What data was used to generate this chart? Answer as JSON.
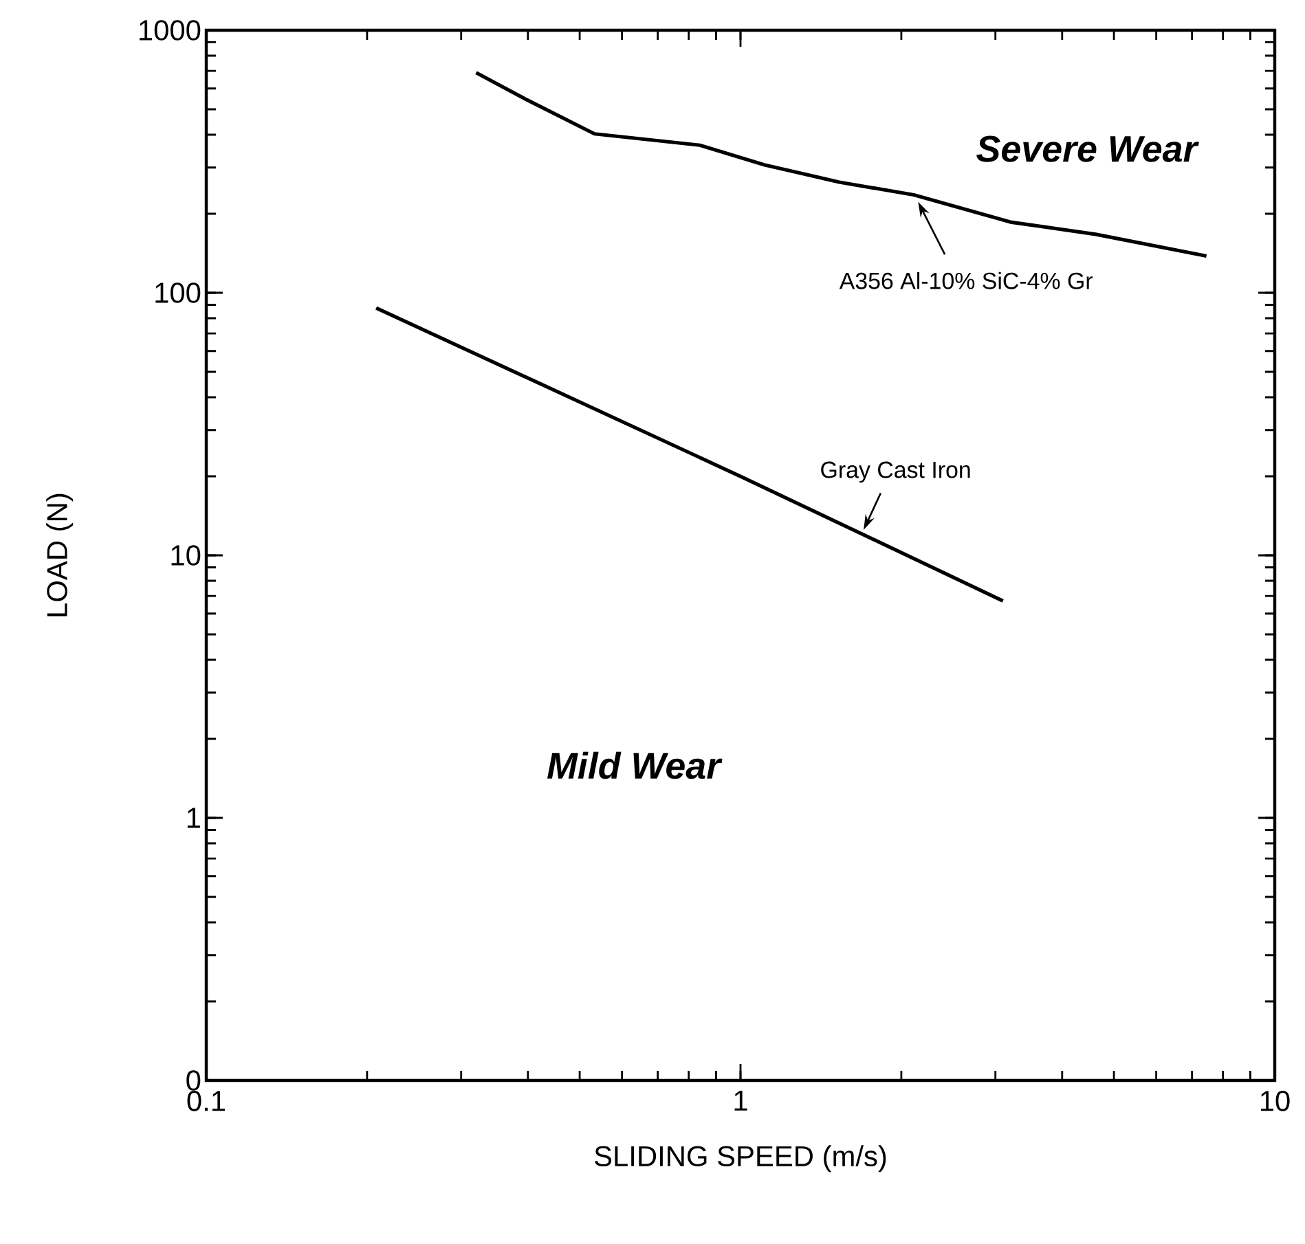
{
  "chart_data": {
    "type": "line",
    "xlabel": "SLIDING SPEED (m/s)",
    "ylabel": "LOAD (N)",
    "log": "xy",
    "xlim": [
      0.1,
      10
    ],
    "ylim": [
      0.1,
      1000
    ],
    "xticks": [
      0.1,
      1,
      10
    ],
    "yticks": [
      {
        "value": 0.1,
        "label": "0"
      },
      1,
      10,
      100,
      1000
    ],
    "line_style": "solid",
    "series": [
      {
        "color": "#000000",
        "x": [
          0.32,
          0.397,
          0.533,
          0.839,
          1.11,
          1.53,
          2.11,
          3.2,
          4.62,
          7.45
        ],
        "values": [
          689,
          545,
          403,
          365,
          307,
          264,
          236,
          186,
          167,
          138
        ]
      },
      {
        "color": "#000000",
        "x": [
          0.208,
          1,
          3.1
        ],
        "values": [
          87.5,
          20,
          6.7
        ]
      }
    ],
    "annotations": [
      "Severe Wear",
      "Mild Wear",
      {
        "text": "A356 Al-10% SiC-4% Gr",
        "x": 2.15,
        "y": 222
      },
      {
        "text": "Gray Cast Iron",
        "x": 1.7,
        "y": 12.5
      }
    ]
  }
}
